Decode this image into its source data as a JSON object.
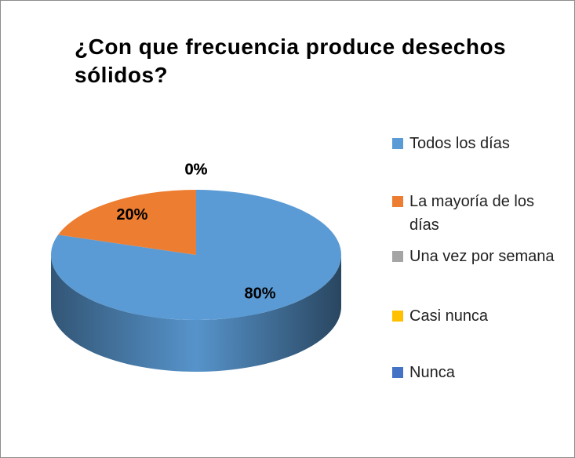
{
  "chart_data": {
    "type": "pie",
    "title": "¿Con que frecuencia produce desechos sólidos?",
    "categories": [
      "Todos los días",
      "La mayoría de los días",
      "Una vez por semana",
      "Casi nunca",
      "Nunca"
    ],
    "values": [
      80,
      20,
      0,
      0,
      0
    ],
    "value_labels": [
      "80%",
      "20%",
      "0%",
      "0%",
      "0%"
    ],
    "colors": [
      "#5b9bd5",
      "#ed7d31",
      "#a5a5a5",
      "#ffc000",
      "#4472c4"
    ],
    "legend": "right"
  }
}
